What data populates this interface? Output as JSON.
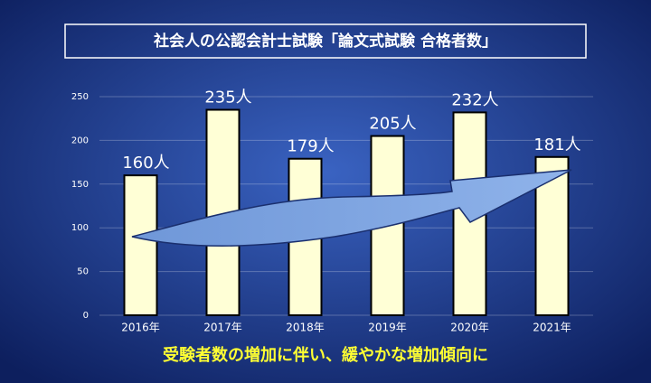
{
  "chart_data": {
    "type": "bar",
    "title": "社会人の公認会計士試験「論文式試験 合格者数」",
    "subtitle": "受験者数の増加に伴い、緩やかな増加傾向に",
    "categories": [
      "2016年",
      "2017年",
      "2018年",
      "2019年",
      "2020年",
      "2021年"
    ],
    "values": [
      160,
      235,
      179,
      205,
      232,
      181
    ],
    "value_labels": [
      "160人",
      "235人",
      "179人",
      "205人",
      "232人",
      "181人"
    ],
    "color": "#ffffd6",
    "ylim": [
      0,
      250
    ],
    "yticks": [
      0,
      50,
      100,
      150,
      200,
      250
    ],
    "grid": true
  }
}
